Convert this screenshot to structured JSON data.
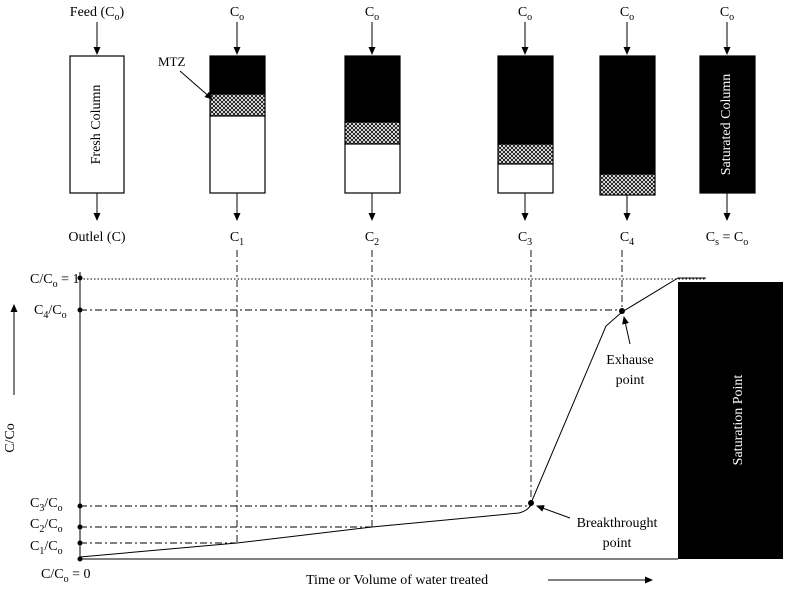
{
  "colors": {
    "line": "#000000",
    "saturated": "#000000",
    "background": "#ffffff",
    "mtz_pattern": "crosshatch"
  },
  "columns": [
    {
      "id": "fresh",
      "inlet": {
        "main": "Feed (C",
        "sub": "o",
        "tail": ")"
      },
      "outlet": {
        "main": "Outlel (C)",
        "sub": "",
        "tail": ""
      },
      "label": "Fresh Column"
    },
    {
      "id": "c1",
      "inlet": {
        "main": "C",
        "sub": "o",
        "tail": ""
      },
      "outlet": {
        "main": "C",
        "sub": "1",
        "tail": ""
      },
      "label": ""
    },
    {
      "id": "c2",
      "inlet": {
        "main": "C",
        "sub": "o",
        "tail": ""
      },
      "outlet": {
        "main": "C",
        "sub": "2",
        "tail": ""
      },
      "label": ""
    },
    {
      "id": "c3",
      "inlet": {
        "main": "C",
        "sub": "o",
        "tail": ""
      },
      "outlet": {
        "main": "C",
        "sub": "3",
        "tail": ""
      },
      "label": ""
    },
    {
      "id": "c4",
      "inlet": {
        "main": "C",
        "sub": "o",
        "tail": ""
      },
      "outlet": {
        "main": "C",
        "sub": "4",
        "tail": ""
      },
      "label": ""
    },
    {
      "id": "saturated",
      "inlet": {
        "main": "C",
        "sub": "o",
        "tail": ""
      },
      "outlet": {
        "main": "C",
        "sub": "s",
        "tail": " = C",
        "sub2": "o"
      },
      "label": "Saturated Column"
    }
  ],
  "mtz_label": "MTZ",
  "y_axis_label": "C/Co",
  "x_axis_label": "Time or Volume of water treated",
  "levels": {
    "top": {
      "main": "C/C",
      "sub": "o",
      "tail": " = 1"
    },
    "c4": {
      "main": "C",
      "sub": "4",
      "tail": "/C",
      "sub2": "o"
    },
    "c3": {
      "main": "C",
      "sub": "3",
      "tail": "/C",
      "sub2": "o"
    },
    "c2": {
      "main": "C",
      "sub": "2",
      "tail": "/C",
      "sub2": "o"
    },
    "c1": {
      "main": "C",
      "sub": "1",
      "tail": "/C",
      "sub2": "o"
    },
    "zero": {
      "main": "C/C",
      "sub": "o",
      "tail": " = 0"
    }
  },
  "annotations": {
    "exhaust": [
      "Exhause",
      "point"
    ],
    "breakthrough": [
      "Breakthrought",
      "point"
    ],
    "saturation": "Saturation Point"
  }
}
